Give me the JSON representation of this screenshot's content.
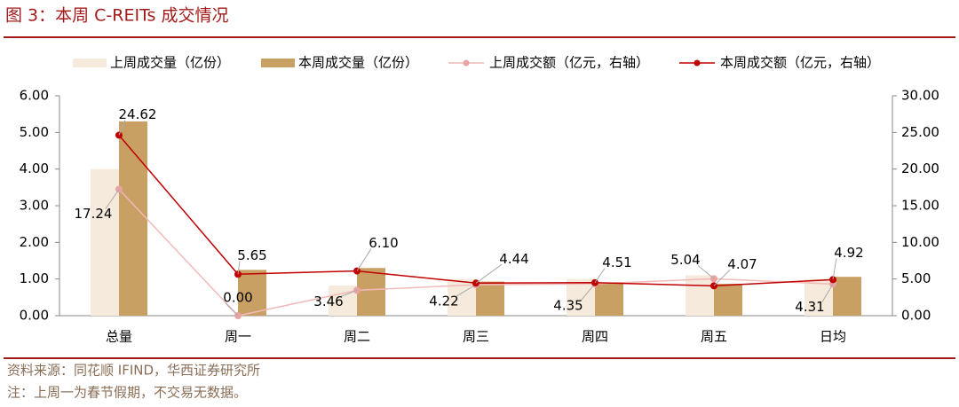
{
  "chart_data": {
    "type": "bar-line",
    "title": "图 3：本周 C-REITs 成交情况",
    "categories": [
      "总量",
      "周一",
      "周二",
      "周三",
      "周四",
      "周五",
      "日均"
    ],
    "series": [
      {
        "name": "上周成交量（亿份）",
        "type": "bar",
        "color": "#f5eadb",
        "values": [
          4.0,
          0,
          0.82,
          1.0,
          1.0,
          1.1,
          1.0
        ]
      },
      {
        "name": "本周成交量（亿份）",
        "type": "bar",
        "color": "#c9a063",
        "values": [
          5.3,
          1.25,
          1.3,
          0.93,
          0.88,
          0.87,
          1.06
        ]
      },
      {
        "name": "上周成交额（亿元，右轴）",
        "type": "line",
        "axis": "y2",
        "color": "#f2b9b9",
        "marker_color": "#e9a3a3",
        "values": [
          17.24,
          0.0,
          3.46,
          4.22,
          4.35,
          5.04,
          4.31
        ],
        "value_labels": [
          "17.24",
          "0.00",
          "3.46",
          "4.22",
          "4.35",
          "5.04",
          "4.31"
        ]
      },
      {
        "name": "本周成交额（亿元，右轴）",
        "type": "line",
        "axis": "y2",
        "color": "#c00000",
        "marker_color": "#c00000",
        "values": [
          24.62,
          5.65,
          6.1,
          4.44,
          4.51,
          4.07,
          4.92
        ],
        "value_labels": [
          "24.62",
          "5.65",
          "6.10",
          "4.44",
          "4.51",
          "4.07",
          "4.92"
        ]
      }
    ],
    "ylim": [
      0,
      6
    ],
    "yticks": [
      {
        "value": 0,
        "label": "0.00"
      },
      {
        "value": 1,
        "label": "1.00"
      },
      {
        "value": 2,
        "label": "2.00"
      },
      {
        "value": 3,
        "label": "3.00"
      },
      {
        "value": 4,
        "label": "4.00"
      },
      {
        "value": 5,
        "label": "5.00"
      },
      {
        "value": 6,
        "label": "6.00"
      }
    ],
    "y2lim": [
      0,
      30
    ],
    "y2ticks": [
      {
        "value": 0,
        "label": "0.00"
      },
      {
        "value": 5,
        "label": "5.00"
      },
      {
        "value": 10,
        "label": "10.00"
      },
      {
        "value": 15,
        "label": "15.00"
      },
      {
        "value": 20,
        "label": "20.00"
      },
      {
        "value": 25,
        "label": "25.00"
      },
      {
        "value": 30,
        "label": "30.00"
      }
    ],
    "source": "资料来源：同花顺 IFIND，华西证券研究所",
    "note": "注：上周一为春节假期，不交易无数据。"
  }
}
